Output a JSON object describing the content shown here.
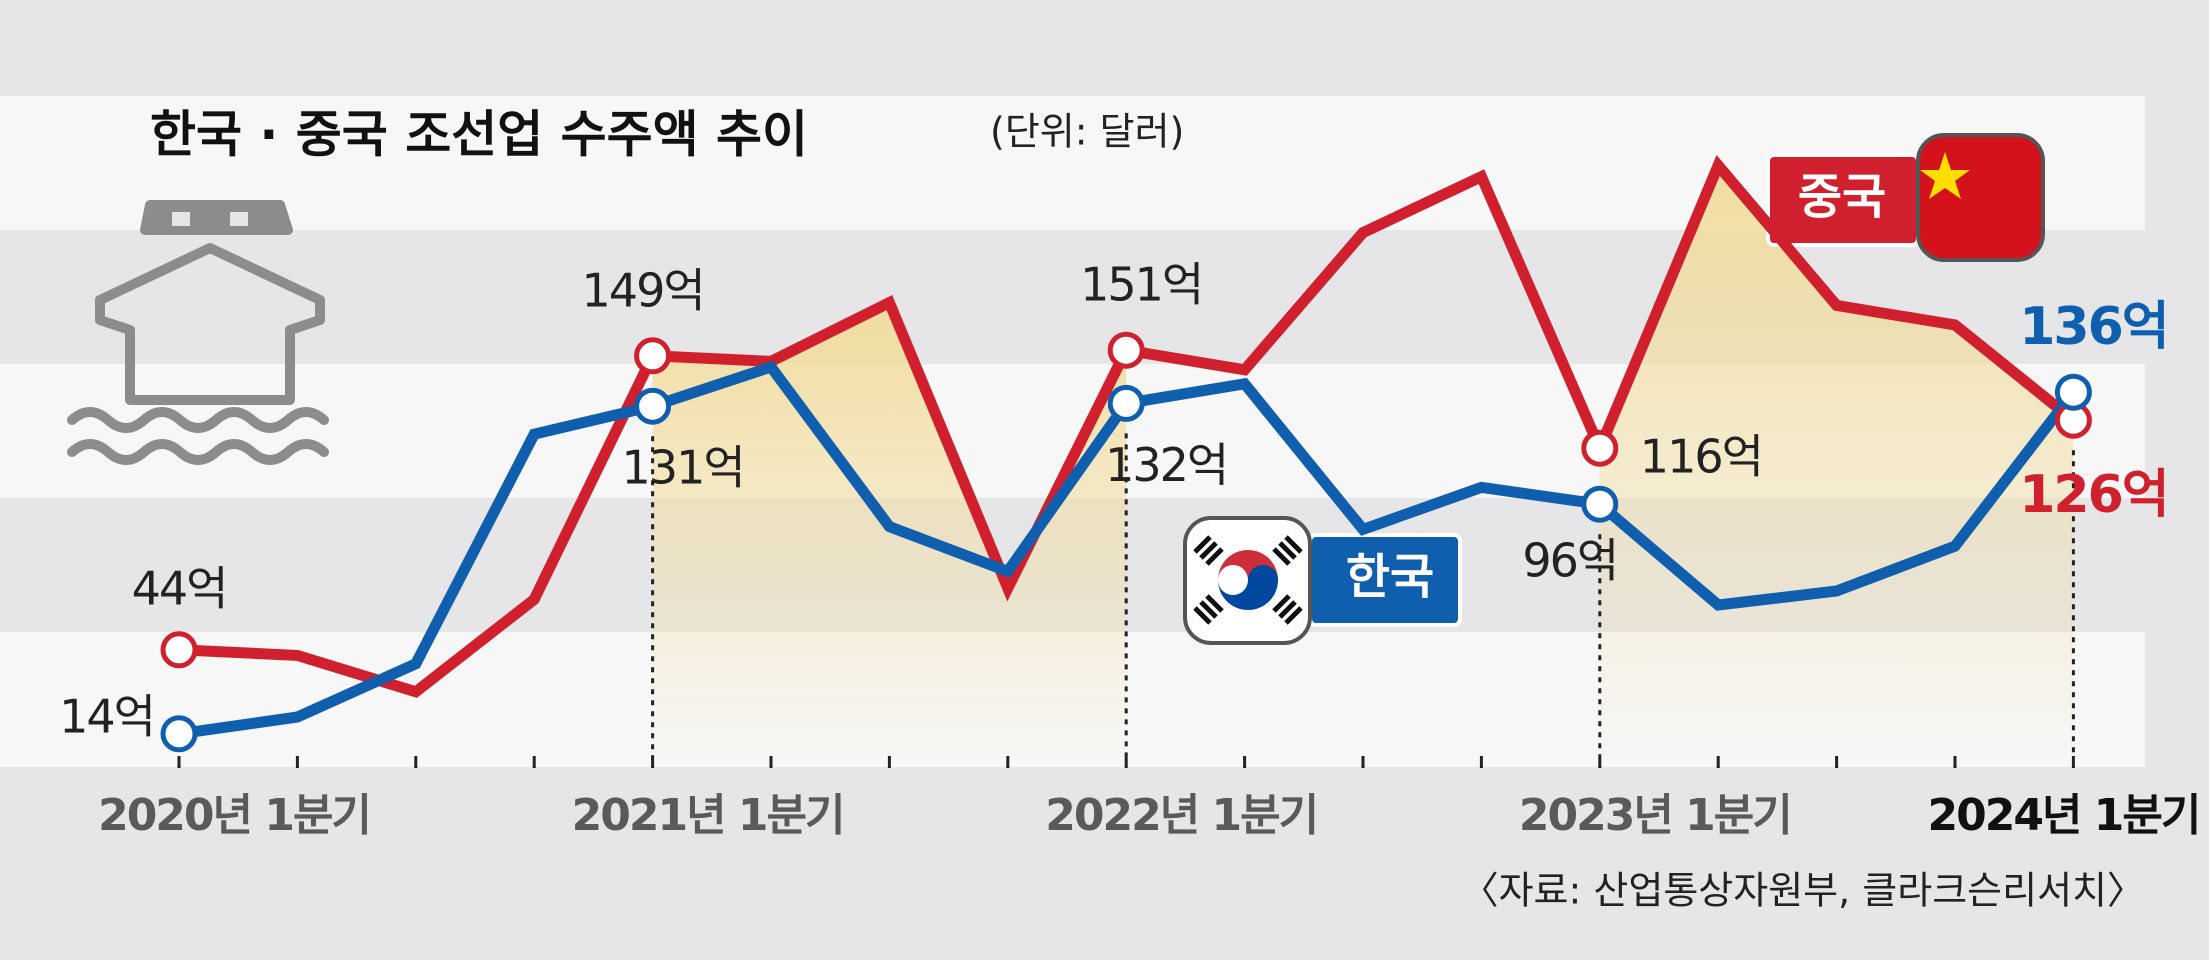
{
  "chart_data": {
    "type": "line",
    "title": "한국 · 중국 조선업 수주액 추이",
    "subtitle": "(단위: 달러)",
    "source": "〈자료: 산업통상자원부, 클라크슨리서치〉",
    "categories": [
      "2020년 1분기",
      null,
      null,
      null,
      "2021년 1분기",
      null,
      null,
      null,
      "2022년 1분기",
      null,
      null,
      null,
      "2023년 1분기",
      null,
      null,
      null,
      "2024년 1분기"
    ],
    "series": [
      {
        "name": "중국",
        "color": "#d0202e",
        "values": [
          44,
          42,
          29,
          62,
          149,
          147,
          168,
          66,
          151,
          144,
          193,
          213,
          116,
          217,
          167,
          160,
          126
        ],
        "value_labels": [
          "44억",
          null,
          null,
          null,
          "149억",
          null,
          null,
          null,
          "151억",
          null,
          null,
          null,
          "116억",
          null,
          null,
          null,
          "126억"
        ]
      },
      {
        "name": "한국",
        "color": "#0f5fae",
        "values": [
          14,
          20,
          39,
          121,
          131,
          145,
          88,
          72,
          132,
          139,
          87,
          102,
          96,
          60,
          65,
          81,
          136
        ],
        "value_labels": [
          "14억",
          null,
          null,
          null,
          "131억",
          null,
          null,
          null,
          "132억",
          null,
          null,
          null,
          "96억",
          null,
          null,
          null,
          "136억"
        ]
      }
    ],
    "ylim": [
      0,
      230
    ]
  }
}
